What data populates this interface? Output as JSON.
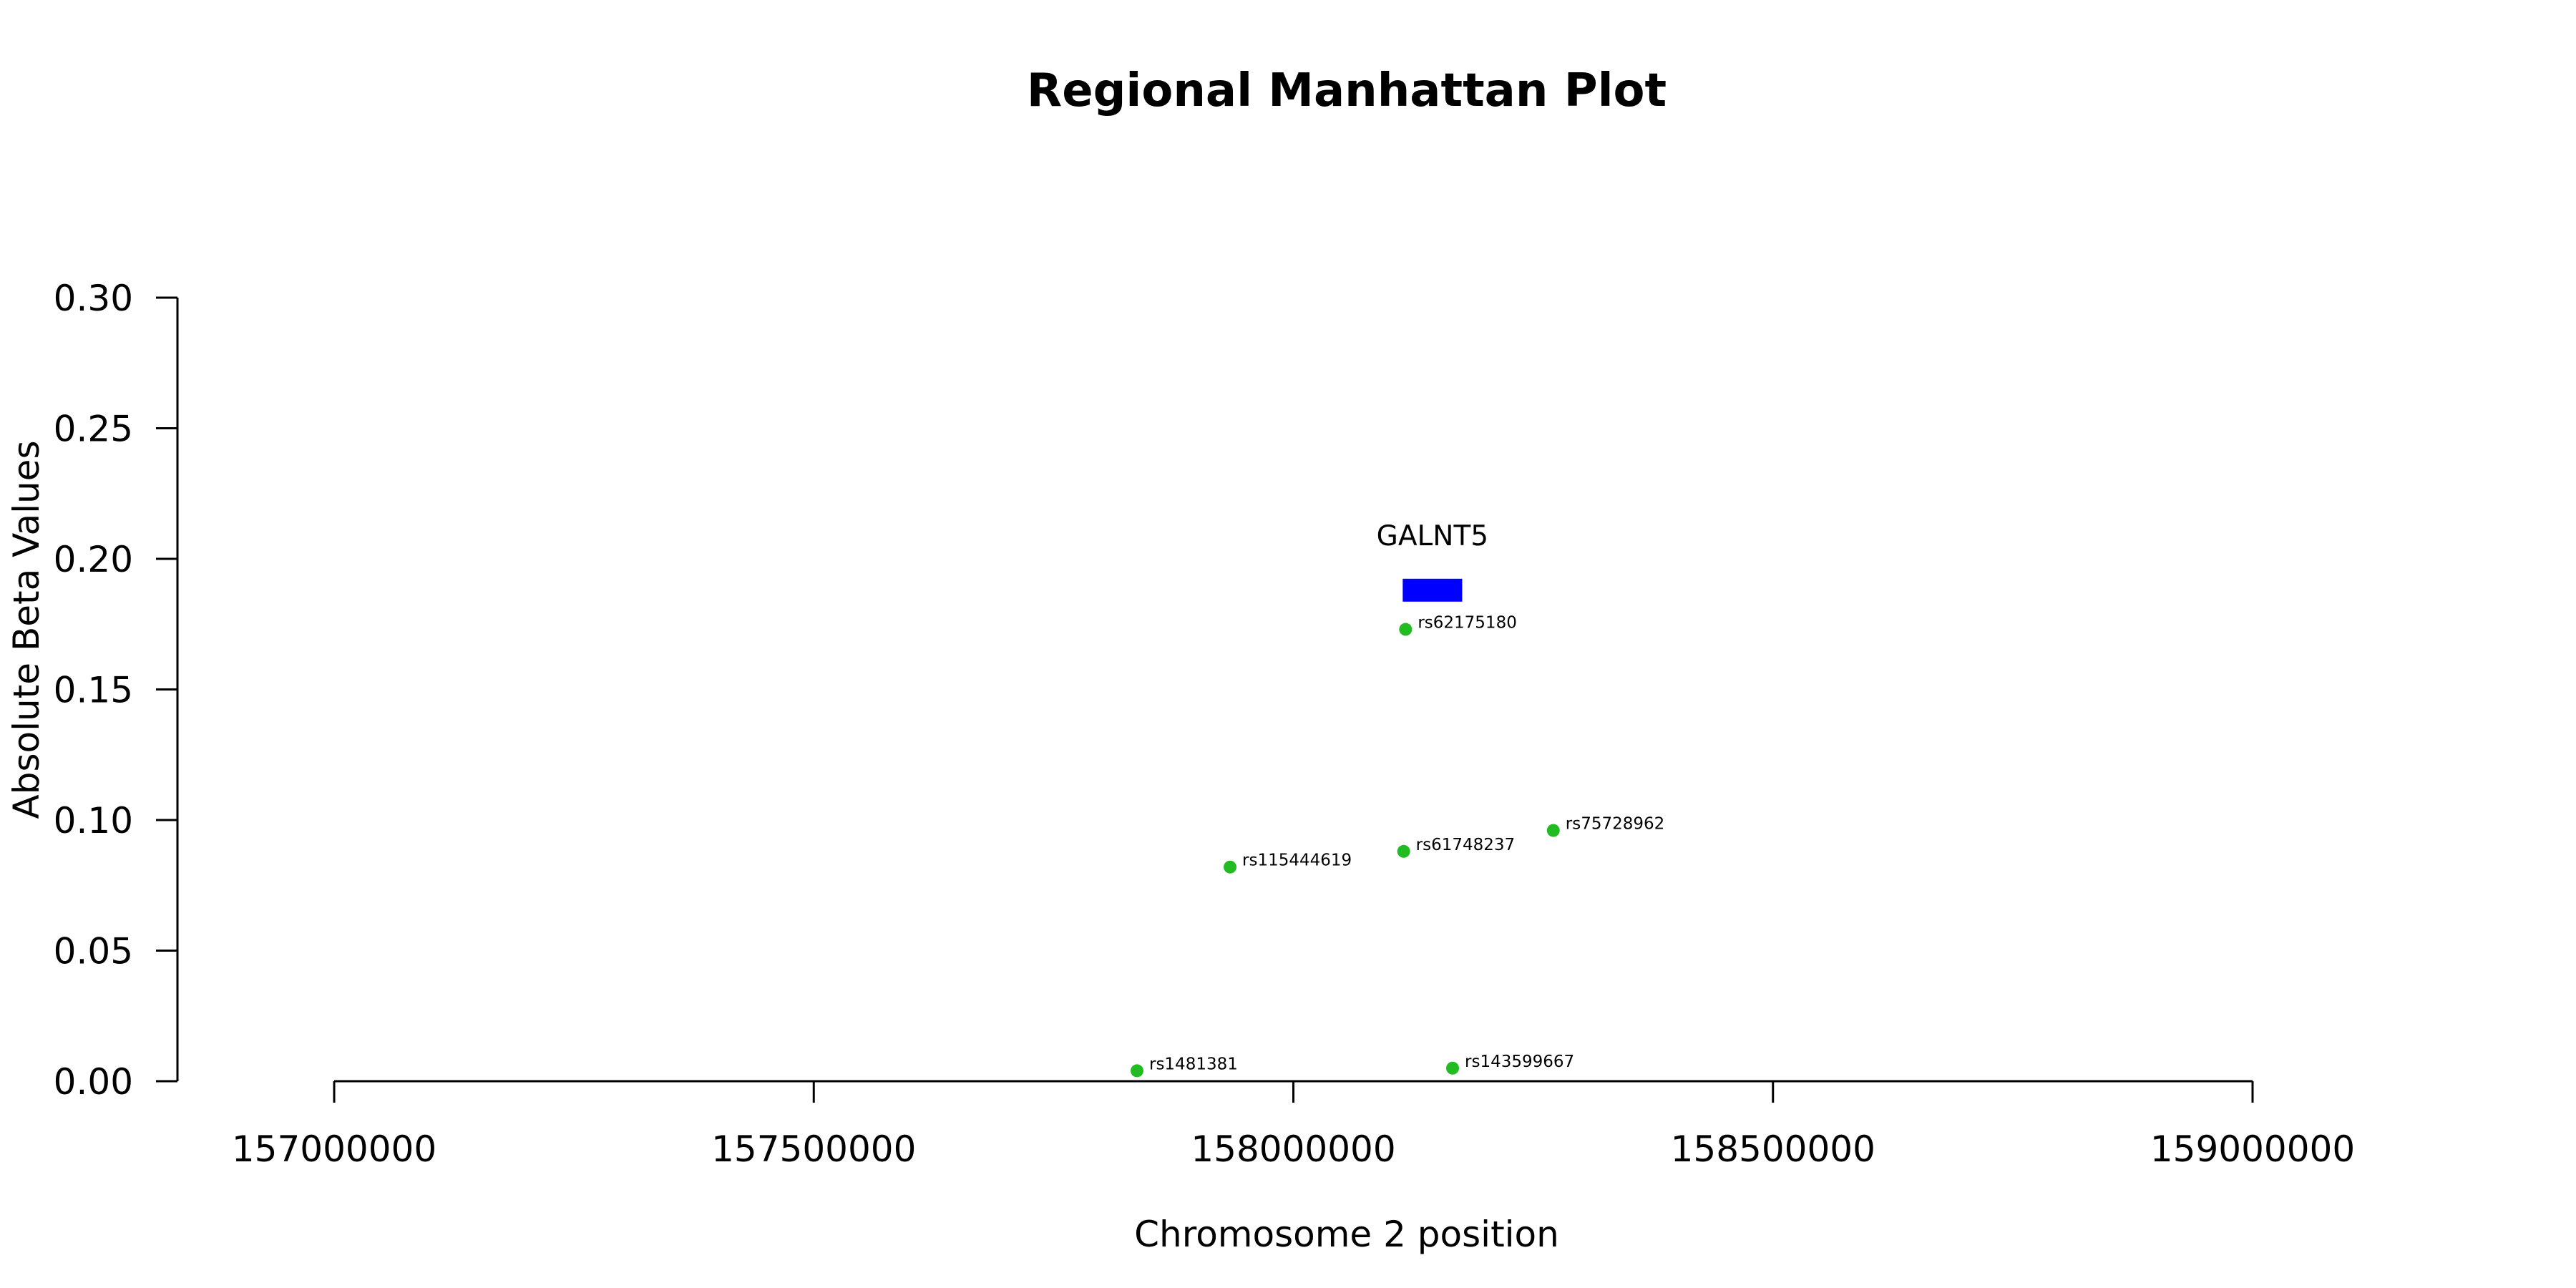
{
  "chart_data": {
    "type": "scatter",
    "title": "Regional Manhattan Plot",
    "xlabel": "Chromosome 2 position",
    "ylabel": "Absolute Beta Values",
    "xlim": [
      157000000,
      159000000
    ],
    "ylim": [
      0,
      0.3
    ],
    "x_ticks": [
      157000000,
      157500000,
      158000000,
      158500000,
      159000000
    ],
    "x_tick_labels": [
      "157000000",
      "157500000",
      "158000000",
      "158500000",
      "159000000"
    ],
    "y_ticks": [
      0,
      0.05,
      0.1,
      0.15,
      0.2,
      0.25,
      0.3
    ],
    "y_tick_labels": [
      "0.00",
      "0.05",
      "0.10",
      "0.15",
      "0.20",
      "0.25",
      "0.30"
    ],
    "grid": false,
    "point_color": "#22bb22",
    "gene_color": "#0000ff",
    "points": [
      {
        "label": "rs62175180",
        "x": 158117000,
        "y": 0.173
      },
      {
        "label": "rs115444619",
        "x": 157934000,
        "y": 0.082
      },
      {
        "label": "rs61748237",
        "x": 158115000,
        "y": 0.088
      },
      {
        "label": "rs75728962",
        "x": 158271000,
        "y": 0.096
      },
      {
        "label": "rs1481381",
        "x": 157837000,
        "y": 0.004
      },
      {
        "label": "rs143599667",
        "x": 158166000,
        "y": 0.005
      }
    ],
    "genes": [
      {
        "name": "GALNT5",
        "start": 158114000,
        "end": 158176000,
        "y": 0.188
      }
    ]
  }
}
